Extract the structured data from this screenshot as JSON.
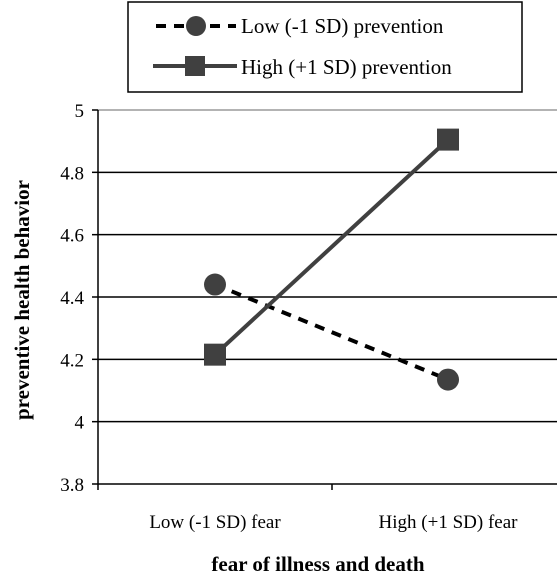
{
  "chart_data": {
    "type": "line",
    "categories": [
      "Low (-1 SD) fear",
      "High (+1 SD) fear"
    ],
    "series": [
      {
        "name": "Low (-1 SD) prevention",
        "values": [
          4.44,
          4.135
        ],
        "line_style": "dashed",
        "marker": "circle",
        "color": "#404040"
      },
      {
        "name": "High (+1 SD) prevention",
        "values": [
          4.215,
          4.905
        ],
        "line_style": "solid",
        "marker": "square",
        "color": "#404040"
      }
    ],
    "title": "",
    "xlabel": "fear of illness and death",
    "ylabel": "preventive health behavior",
    "ylim": [
      3.8,
      5
    ],
    "yticks": [
      "3.8",
      "4",
      "4.2",
      "4.4",
      "4.6",
      "4.8",
      "5"
    ],
    "grid": "horizontal",
    "legend_position": "top"
  }
}
